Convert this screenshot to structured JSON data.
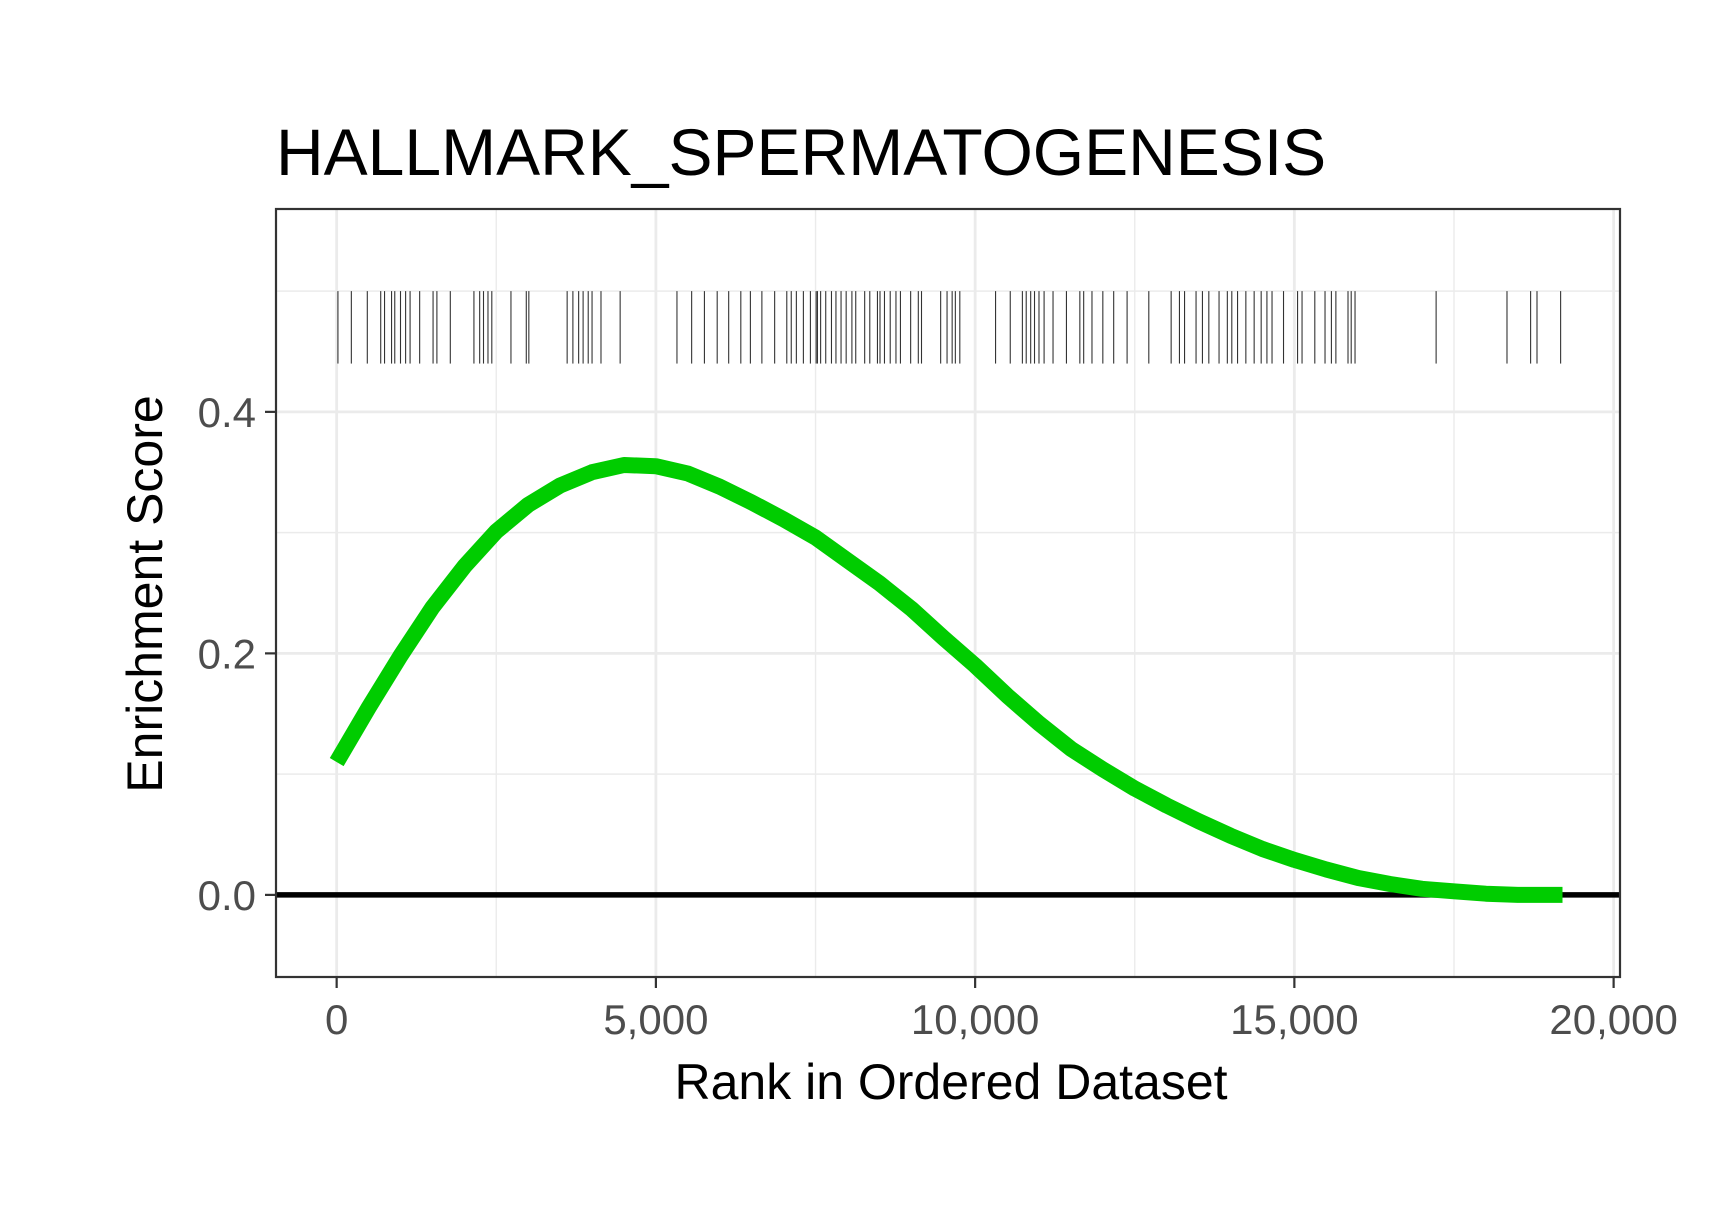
{
  "chart_data": {
    "type": "line",
    "title": "HALLMARK_SPERMATOGENESIS",
    "xlabel": "Rank in Ordered Dataset",
    "ylabel": "Enrichment Score",
    "xlim": [
      -950,
      20100
    ],
    "ylim": [
      -0.068,
      0.568
    ],
    "x_ticks": [
      0,
      5000,
      10000,
      15000,
      20000
    ],
    "x_tick_labels": [
      "0",
      "5,000",
      "10,000",
      "15,000",
      "20,000"
    ],
    "y_ticks": [
      0.0,
      0.2,
      0.4
    ],
    "y_tick_labels": [
      "0.0",
      "0.2",
      "0.4"
    ],
    "grid": true,
    "legend": "none",
    "colors": {
      "curve": "#00cc00",
      "zero_line": "#000000",
      "hits": "#333333",
      "grid": "#ebebeb",
      "panel_border": "#333333"
    },
    "series": [
      {
        "x": [
          0,
          500,
          1000,
          1500,
          2000,
          2500,
          3000,
          3500,
          4000,
          4500,
          5000,
          5500,
          6000,
          6500,
          7000,
          7500,
          8000,
          8500,
          9000,
          9500,
          10000,
          10500,
          11000,
          11500,
          12000,
          12500,
          13000,
          13500,
          14000,
          14500,
          15000,
          15500,
          16000,
          16500,
          17000,
          17500,
          18000,
          18500,
          19000,
          19200
        ],
        "y": [
          0.11,
          0.155,
          0.198,
          0.238,
          0.272,
          0.301,
          0.323,
          0.339,
          0.35,
          0.356,
          0.355,
          0.349,
          0.338,
          0.325,
          0.311,
          0.296,
          0.277,
          0.258,
          0.237,
          0.213,
          0.19,
          0.165,
          0.142,
          0.121,
          0.104,
          0.088,
          0.074,
          0.061,
          0.049,
          0.038,
          0.029,
          0.021,
          0.014,
          0.009,
          0.005,
          0.003,
          0.001,
          0.0,
          0.0,
          0.0
        ]
      }
    ],
    "hits": [
      20,
      230,
      480,
      690,
      750,
      860,
      910,
      1000,
      1080,
      1150,
      1300,
      1510,
      1570,
      1780,
      2150,
      2240,
      2300,
      2370,
      2430,
      2730,
      2970,
      3010,
      3610,
      3700,
      3790,
      3860,
      3940,
      4000,
      4140,
      4440,
      5330,
      5560,
      5760,
      5960,
      6140,
      6330,
      6480,
      6660,
      6860,
      7050,
      7120,
      7200,
      7310,
      7420,
      7510,
      7530,
      7580,
      7660,
      7750,
      7820,
      7900,
      7980,
      8070,
      8130,
      8270,
      8350,
      8470,
      8510,
      8580,
      8670,
      8760,
      8830,
      8990,
      9110,
      9160,
      9460,
      9560,
      9640,
      9690,
      9760,
      10320,
      10550,
      10740,
      10800,
      10870,
      10930,
      11000,
      11080,
      11220,
      11430,
      11640,
      11700,
      11830,
      12000,
      12170,
      12380,
      12720,
      13070,
      13200,
      13280,
      13460,
      13560,
      13660,
      13820,
      13950,
      14020,
      14110,
      14240,
      14370,
      14480,
      14570,
      14650,
      14830,
      15050,
      15120,
      15320,
      15480,
      15580,
      15650,
      15840,
      15890,
      15950,
      17220,
      18330,
      18700,
      18800,
      19170
    ]
  }
}
